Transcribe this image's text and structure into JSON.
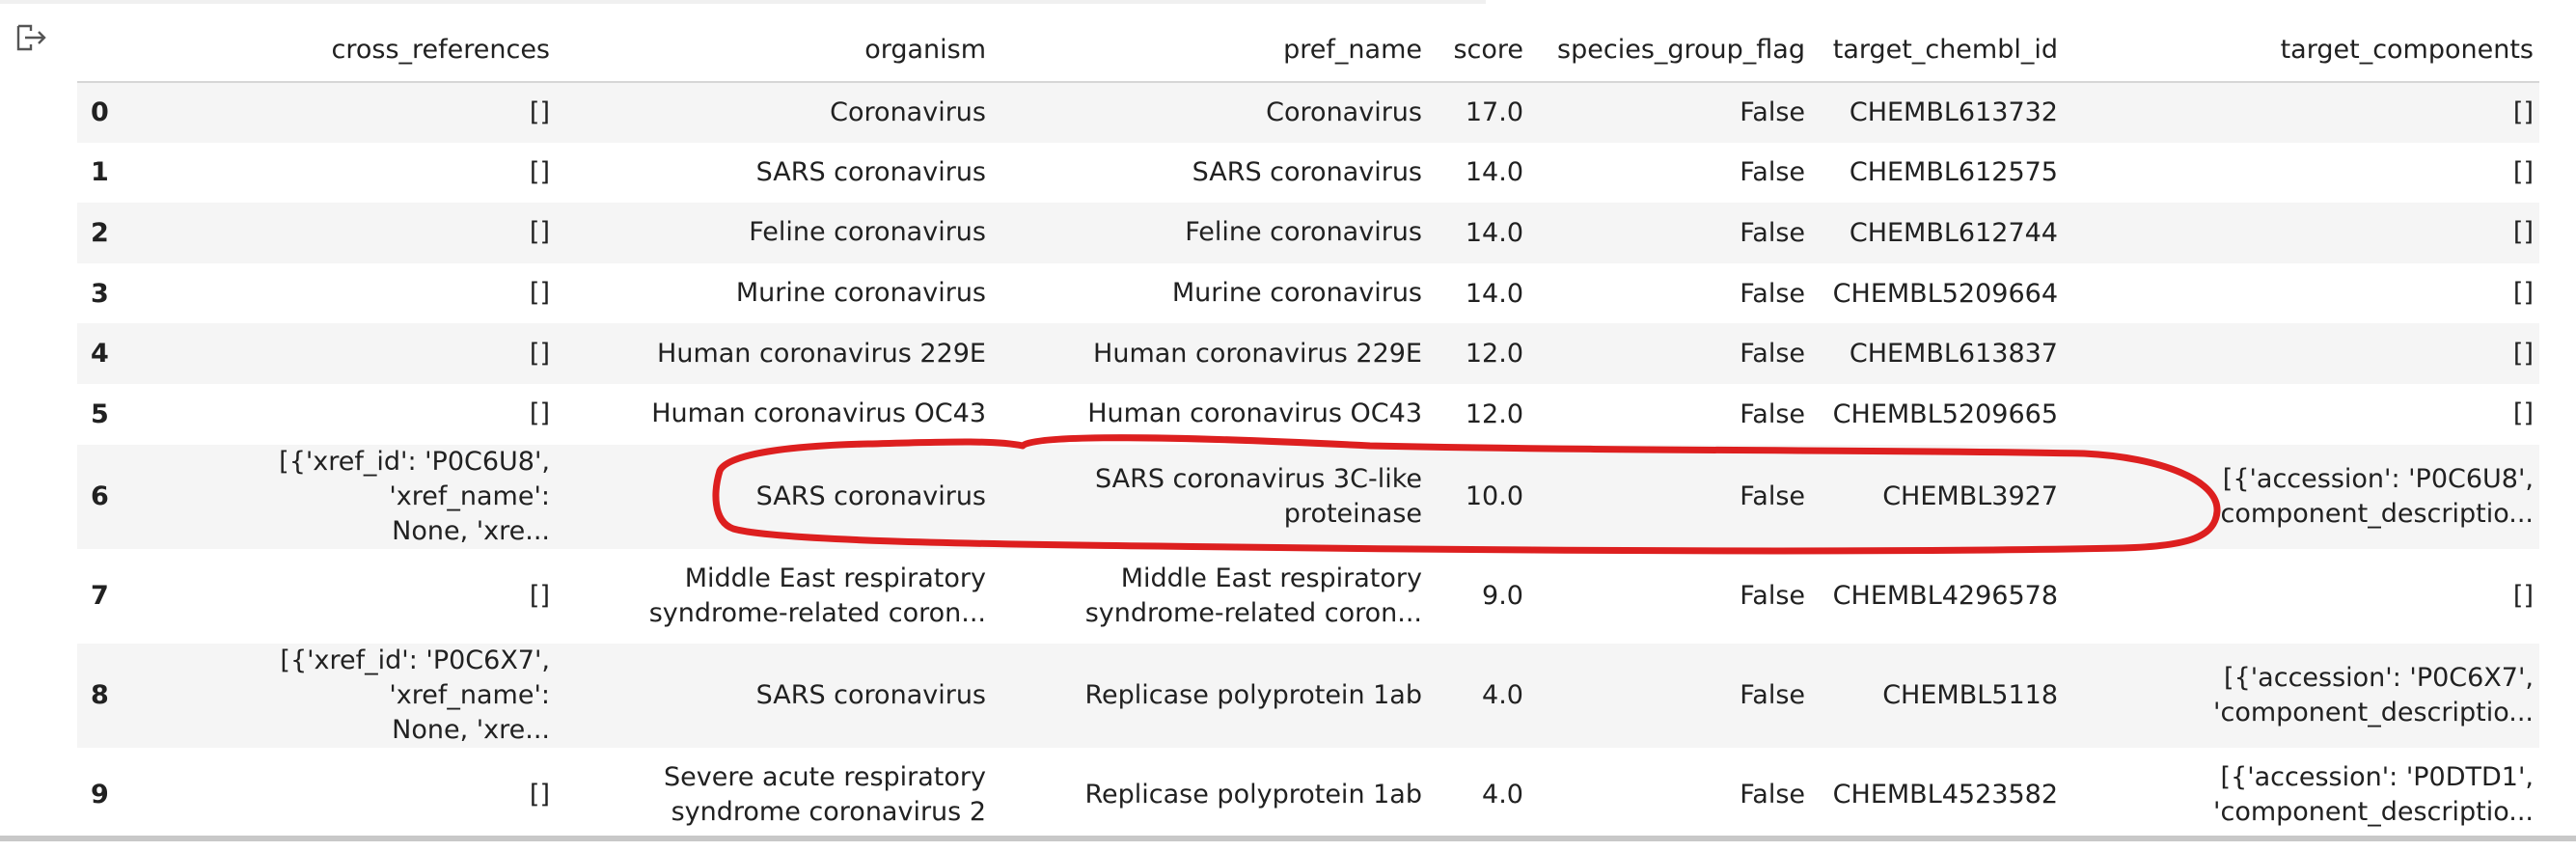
{
  "columns": {
    "index": "",
    "cross_references": "cross_references",
    "organism": "organism",
    "pref_name": "pref_name",
    "score": "score",
    "species_group_flag": "species_group_flag",
    "target_chembl_id": "target_chembl_id",
    "target_components": "target_components"
  },
  "rows": [
    {
      "index": "0",
      "cross_references": [
        "[]"
      ],
      "organism": [
        "Coronavirus"
      ],
      "pref_name": [
        "Coronavirus"
      ],
      "score": "17.0",
      "species_group_flag": "False",
      "target_chembl_id": "CHEMBL613732",
      "target_components": [
        "[]"
      ]
    },
    {
      "index": "1",
      "cross_references": [
        "[]"
      ],
      "organism": [
        "SARS coronavirus"
      ],
      "pref_name": [
        "SARS coronavirus"
      ],
      "score": "14.0",
      "species_group_flag": "False",
      "target_chembl_id": "CHEMBL612575",
      "target_components": [
        "[]"
      ]
    },
    {
      "index": "2",
      "cross_references": [
        "[]"
      ],
      "organism": [
        "Feline coronavirus"
      ],
      "pref_name": [
        "Feline coronavirus"
      ],
      "score": "14.0",
      "species_group_flag": "False",
      "target_chembl_id": "CHEMBL612744",
      "target_components": [
        "[]"
      ]
    },
    {
      "index": "3",
      "cross_references": [
        "[]"
      ],
      "organism": [
        "Murine coronavirus"
      ],
      "pref_name": [
        "Murine coronavirus"
      ],
      "score": "14.0",
      "species_group_flag": "False",
      "target_chembl_id": "CHEMBL5209664",
      "target_components": [
        "[]"
      ]
    },
    {
      "index": "4",
      "cross_references": [
        "[]"
      ],
      "organism": [
        "Human coronavirus 229E"
      ],
      "pref_name": [
        "Human coronavirus 229E"
      ],
      "score": "12.0",
      "species_group_flag": "False",
      "target_chembl_id": "CHEMBL613837",
      "target_components": [
        "[]"
      ]
    },
    {
      "index": "5",
      "cross_references": [
        "[]"
      ],
      "organism": [
        "Human coronavirus OC43"
      ],
      "pref_name": [
        "Human coronavirus OC43"
      ],
      "score": "12.0",
      "species_group_flag": "False",
      "target_chembl_id": "CHEMBL5209665",
      "target_components": [
        "[]"
      ]
    },
    {
      "index": "6",
      "cross_references": [
        "[{'xref_id': 'P0C6U8', 'xref_name':",
        "None, 'xre..."
      ],
      "organism": [
        "SARS coronavirus"
      ],
      "pref_name": [
        "SARS coronavirus 3C-like",
        "proteinase"
      ],
      "score": "10.0",
      "species_group_flag": "False",
      "target_chembl_id": "CHEMBL3927",
      "target_components": [
        "[{'accession': 'P0C6U8',",
        "'component_descriptio..."
      ]
    },
    {
      "index": "7",
      "cross_references": [
        "[]"
      ],
      "organism": [
        "Middle East respiratory",
        "syndrome-related coron..."
      ],
      "pref_name": [
        "Middle East respiratory",
        "syndrome-related coron..."
      ],
      "score": "9.0",
      "species_group_flag": "False",
      "target_chembl_id": "CHEMBL4296578",
      "target_components": [
        "[]"
      ]
    },
    {
      "index": "8",
      "cross_references": [
        "[{'xref_id': 'P0C6X7', 'xref_name':",
        "None, 'xre..."
      ],
      "organism": [
        "SARS coronavirus"
      ],
      "pref_name": [
        "Replicase polyprotein 1ab"
      ],
      "score": "4.0",
      "species_group_flag": "False",
      "target_chembl_id": "CHEMBL5118",
      "target_components": [
        "[{'accession': 'P0C6X7',",
        "'component_descriptio..."
      ]
    },
    {
      "index": "9",
      "cross_references": [
        "[]"
      ],
      "organism": [
        "Severe acute respiratory",
        "syndrome coronavirus 2"
      ],
      "pref_name": [
        "Replicase polyprotein 1ab"
      ],
      "score": "4.0",
      "species_group_flag": "False",
      "target_chembl_id": "CHEMBL4523582",
      "target_components": [
        "[{'accession': 'P0DTD1',",
        "'component_descriptio..."
      ]
    }
  ],
  "colors": {
    "annotation_stroke": "#dd1f1f",
    "row_stripe": "#f5f5f5",
    "header_border": "#d6d6d6"
  },
  "icons": {
    "output": "output-redirect-icon"
  }
}
